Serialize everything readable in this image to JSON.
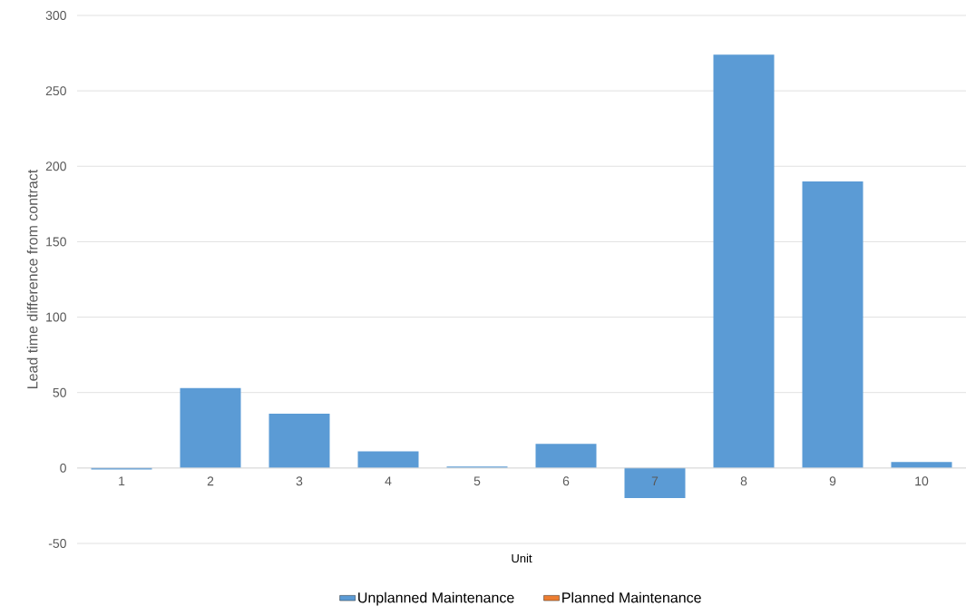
{
  "chart_data": {
    "type": "bar",
    "xlabel": "Unit",
    "ylabel": "Lead time difference from contract",
    "categories": [
      "1",
      "2",
      "3",
      "4",
      "5",
      "6",
      "7",
      "8",
      "9",
      "10"
    ],
    "series": [
      {
        "name": "Unplanned Maintenance",
        "color": "#5b9bd5",
        "values": [
          -1,
          53,
          36,
          11,
          1,
          16,
          -20,
          274,
          190,
          4
        ]
      },
      {
        "name": "Planned Maintenance",
        "color": "#ed7d31",
        "values": [
          null,
          null,
          null,
          null,
          null,
          null,
          null,
          null,
          null,
          null
        ]
      }
    ],
    "ylim": [
      -50,
      300
    ],
    "yticks": [
      -50,
      0,
      50,
      100,
      150,
      200,
      250,
      300
    ],
    "grid": "y",
    "legend": "bottom"
  }
}
